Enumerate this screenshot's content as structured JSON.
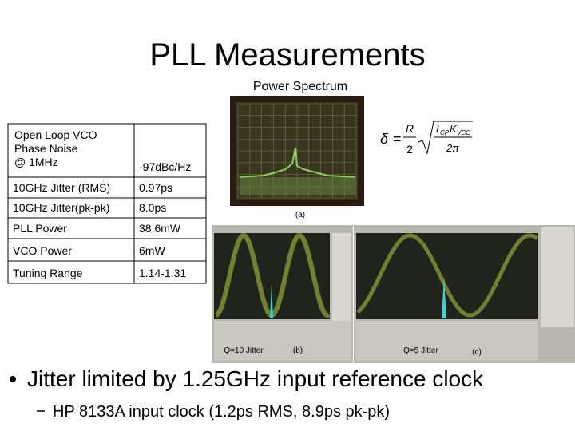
{
  "title": "PLL Measurements",
  "figure": {
    "heading": "Power Spectrum",
    "label_a": "(a)",
    "label_b": "(b)",
    "label_c": "(c)",
    "caption_b": "Q=10 Jitter",
    "caption_c": "Q=5 Jitter"
  },
  "formula": {
    "lhs": "δ",
    "equals": "=",
    "numerator": "R",
    "denominator": "2",
    "current": "I",
    "current_sub": "CP",
    "gain": "K",
    "gain_sub": "VCO",
    "inner_denominator": "2π"
  },
  "table": {
    "rows": [
      [
        [
          "Open Loop VCO",
          " Phase Noise",
          "@ 1MHz"
        ],
        "-97dBc/Hz"
      ],
      [
        "10GHz Jitter (RMS)",
        "0.97ps"
      ],
      [
        "10GHz Jitter(pk-pk)",
        "8.0ps"
      ],
      [
        "PLL Power",
        "38.6mW"
      ],
      [
        "VCO Power",
        "6mW"
      ],
      [
        "Tuning Range",
        "1.14-1.31"
      ]
    ]
  },
  "bullets": [
    {
      "text": "Jitter limited by 1.25GHz input reference clock",
      "sub": [
        "HP 8133A input clock (1.2ps RMS, 8.9ps pk-pk)"
      ]
    }
  ]
}
